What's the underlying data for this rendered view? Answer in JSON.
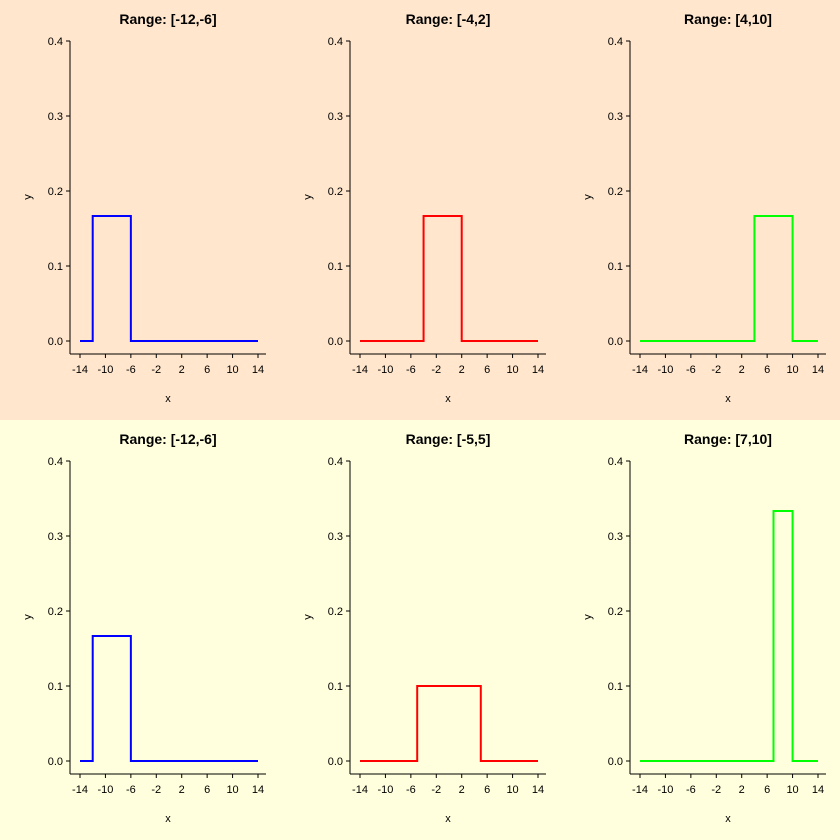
{
  "colors": {
    "top_background": "#ffe6cc",
    "bottom_background": "#ffffdd",
    "series_blue": "#0000ff",
    "series_red": "#ff0000",
    "series_green": "#00ff00"
  },
  "chart_data": [
    {
      "type": "line",
      "title": "Range: [-12,-6]",
      "xlabel": "x",
      "ylabel": "y",
      "xlim": [
        -14,
        14
      ],
      "ylim": [
        0,
        0.4
      ],
      "xticks": [
        -14,
        -10,
        -6,
        -2,
        2,
        6,
        10,
        14
      ],
      "xtick_labels": [
        "-14",
        "-10",
        "-6",
        "-2",
        "2",
        "6",
        "10",
        "14"
      ],
      "yticks": [
        0.0,
        0.1,
        0.2,
        0.3,
        0.4
      ],
      "ytick_labels": [
        "0.0",
        "0.1",
        "0.2",
        "0.3",
        "0.4"
      ],
      "grid": false,
      "background": "top",
      "series": [
        {
          "color": "#0000ff",
          "x": [
            -14,
            -12,
            -12,
            -6,
            -6,
            14
          ],
          "y": [
            0,
            0,
            0.1667,
            0.1667,
            0,
            0
          ]
        }
      ]
    },
    {
      "type": "line",
      "title": "Range: [-4,2]",
      "xlabel": "x",
      "ylabel": "y",
      "xlim": [
        -14,
        14
      ],
      "ylim": [
        0,
        0.4
      ],
      "xticks": [
        -14,
        -10,
        -6,
        -2,
        2,
        6,
        10,
        14
      ],
      "xtick_labels": [
        "-14",
        "-10",
        "-6",
        "-2",
        "2",
        "6",
        "10",
        "14"
      ],
      "yticks": [
        0.0,
        0.1,
        0.2,
        0.3,
        0.4
      ],
      "ytick_labels": [
        "0.0",
        "0.1",
        "0.2",
        "0.3",
        "0.4"
      ],
      "grid": false,
      "background": "top",
      "series": [
        {
          "color": "#ff0000",
          "x": [
            -14,
            -4,
            -4,
            2,
            2,
            14
          ],
          "y": [
            0,
            0,
            0.1667,
            0.1667,
            0,
            0
          ]
        }
      ]
    },
    {
      "type": "line",
      "title": "Range: [4,10]",
      "xlabel": "x",
      "ylabel": "y",
      "xlim": [
        -14,
        14
      ],
      "ylim": [
        0,
        0.4
      ],
      "xticks": [
        -14,
        -10,
        -6,
        -2,
        2,
        6,
        10,
        14
      ],
      "xtick_labels": [
        "-14",
        "-10",
        "-6",
        "-2",
        "2",
        "6",
        "10",
        "14"
      ],
      "yticks": [
        0.0,
        0.1,
        0.2,
        0.3,
        0.4
      ],
      "ytick_labels": [
        "0.0",
        "0.1",
        "0.2",
        "0.3",
        "0.4"
      ],
      "grid": false,
      "background": "top",
      "series": [
        {
          "color": "#00ff00",
          "x": [
            -14,
            4,
            4,
            10,
            10,
            14
          ],
          "y": [
            0,
            0,
            0.1667,
            0.1667,
            0,
            0
          ]
        }
      ]
    },
    {
      "type": "line",
      "title": "Range: [-12,-6]",
      "xlabel": "x",
      "ylabel": "y",
      "xlim": [
        -14,
        14
      ],
      "ylim": [
        0,
        0.4
      ],
      "xticks": [
        -14,
        -10,
        -6,
        -2,
        2,
        6,
        10,
        14
      ],
      "xtick_labels": [
        "-14",
        "-10",
        "-6",
        "-2",
        "2",
        "6",
        "10",
        "14"
      ],
      "yticks": [
        0.0,
        0.1,
        0.2,
        0.3,
        0.4
      ],
      "ytick_labels": [
        "0.0",
        "0.1",
        "0.2",
        "0.3",
        "0.4"
      ],
      "grid": false,
      "background": "bottom",
      "series": [
        {
          "color": "#0000ff",
          "x": [
            -14,
            -12,
            -12,
            -6,
            -6,
            14
          ],
          "y": [
            0,
            0,
            0.1667,
            0.1667,
            0,
            0
          ]
        }
      ]
    },
    {
      "type": "line",
      "title": "Range: [-5,5]",
      "xlabel": "x",
      "ylabel": "y",
      "xlim": [
        -14,
        14
      ],
      "ylim": [
        0,
        0.4
      ],
      "xticks": [
        -14,
        -10,
        -6,
        -2,
        2,
        6,
        10,
        14
      ],
      "xtick_labels": [
        "-14",
        "-10",
        "-6",
        "-2",
        "2",
        "6",
        "10",
        "14"
      ],
      "yticks": [
        0.0,
        0.1,
        0.2,
        0.3,
        0.4
      ],
      "ytick_labels": [
        "0.0",
        "0.1",
        "0.2",
        "0.3",
        "0.4"
      ],
      "grid": false,
      "background": "bottom",
      "series": [
        {
          "color": "#ff0000",
          "x": [
            -14,
            -5,
            -5,
            5,
            5,
            14
          ],
          "y": [
            0,
            0,
            0.1,
            0.1,
            0,
            0
          ]
        }
      ]
    },
    {
      "type": "line",
      "title": "Range: [7,10]",
      "xlabel": "x",
      "ylabel": "y",
      "xlim": [
        -14,
        14
      ],
      "ylim": [
        0,
        0.4
      ],
      "xticks": [
        -14,
        -10,
        -6,
        -2,
        2,
        6,
        10,
        14
      ],
      "xtick_labels": [
        "-14",
        "-10",
        "-6",
        "-2",
        "2",
        "6",
        "10",
        "14"
      ],
      "yticks": [
        0.0,
        0.1,
        0.2,
        0.3,
        0.4
      ],
      "ytick_labels": [
        "0.0",
        "0.1",
        "0.2",
        "0.3",
        "0.4"
      ],
      "grid": false,
      "background": "bottom",
      "series": [
        {
          "color": "#00ff00",
          "x": [
            -14,
            7,
            7,
            10,
            10,
            14
          ],
          "y": [
            0,
            0,
            0.3333,
            0.3333,
            0,
            0
          ]
        }
      ]
    }
  ]
}
